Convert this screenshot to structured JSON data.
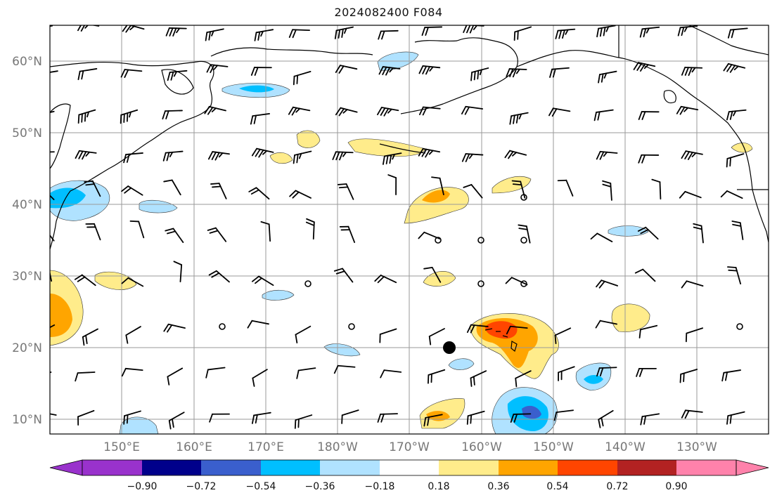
{
  "title": "2024082400 F084",
  "map": {
    "lat_labels": [
      "60°N",
      "50°N",
      "40°N",
      "30°N",
      "20°N",
      "10°N"
    ],
    "lon_labels": [
      "150°E",
      "160°E",
      "170°E",
      "180°W",
      "170°W",
      "160°W",
      "150°W",
      "140°W",
      "130°W"
    ],
    "colors": {
      "land_outline": "#000000",
      "grid": "#9a9a9a",
      "barb": "#000000"
    },
    "marker": "center-dot"
  },
  "colorbar": {
    "colors": [
      "#9932cc",
      "#00008b",
      "#3a5fcd",
      "#00bfff",
      "#b0e2ff",
      "#ffffff",
      "#ffec8b",
      "#ffa500",
      "#ff4500",
      "#b22222",
      "#ff82ab"
    ],
    "tick_labels": [
      "−0.90",
      "−0.72",
      "−0.54",
      "−0.36",
      "−0.18",
      "0.18",
      "0.36",
      "0.54",
      "0.72",
      "0.90"
    ]
  }
}
